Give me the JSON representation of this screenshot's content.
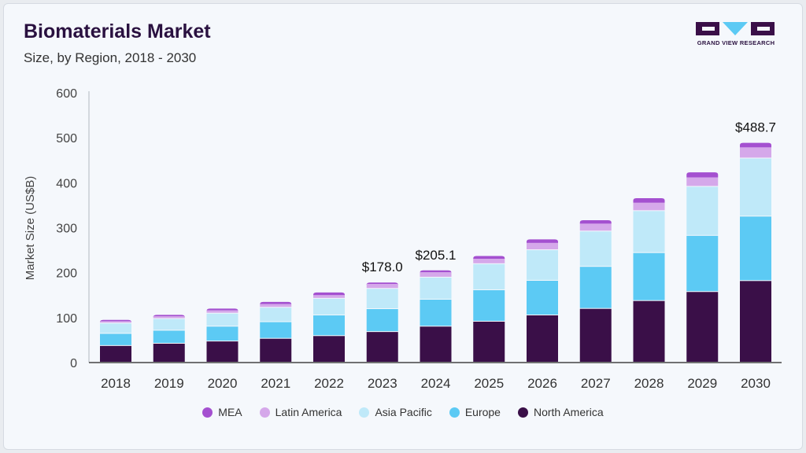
{
  "header": {
    "title": "Biomaterials Market",
    "subtitle": "Size, by Region, 2018 - 2030",
    "logo_text": "GRAND VIEW RESEARCH"
  },
  "chart_data": {
    "type": "bar",
    "stacked": true,
    "ylabel": "Market Size (US$B)",
    "ylim": [
      0,
      600
    ],
    "yticks": [
      "0",
      "100",
      "200",
      "300",
      "400",
      "500",
      "600"
    ],
    "grid": false,
    "legend_position": "bottom",
    "categories": [
      "2018",
      "2019",
      "2020",
      "2021",
      "2022",
      "2023",
      "2024",
      "2025",
      "2026",
      "2027",
      "2028",
      "2029",
      "2030"
    ],
    "series": [
      {
        "name": "North America",
        "color": "#3a0f48",
        "values": [
          37,
          42,
          47,
          53,
          59,
          68,
          80,
          91,
          105,
          119.5,
          137,
          157,
          181.4
        ]
      },
      {
        "name": "Europe",
        "color": "#5ccaf4",
        "values": [
          27,
          29,
          33,
          37,
          46,
          51,
          60,
          70,
          77,
          93.5,
          106.7,
          125,
          143.4
        ]
      },
      {
        "name": "Asia Pacific",
        "color": "#bfe9f9",
        "values": [
          23,
          26,
          29,
          32,
          37,
          45,
          49,
          58,
          68,
          78.6,
          93.3,
          109,
          129.2
        ]
      },
      {
        "name": "Latin America",
        "color": "#d5a8ea",
        "values": [
          5,
          6,
          7,
          8,
          8,
          11,
          12,
          12,
          16,
          17.4,
          18.6,
          21,
          24.7
        ]
      },
      {
        "name": "MEA",
        "color": "#a450d0",
        "values": [
          3,
          3,
          4,
          5,
          6,
          3,
          4.1,
          6,
          8,
          7.6,
          10,
          11,
          10.0
        ]
      }
    ],
    "annotations": [
      {
        "category": "2023",
        "label": "$178.0"
      },
      {
        "category": "2024",
        "label": "$205.1"
      },
      {
        "category": "2030",
        "label": "$488.7"
      }
    ],
    "legend_order": [
      "MEA",
      "Latin America",
      "Asia Pacific",
      "Europe",
      "North America"
    ]
  }
}
